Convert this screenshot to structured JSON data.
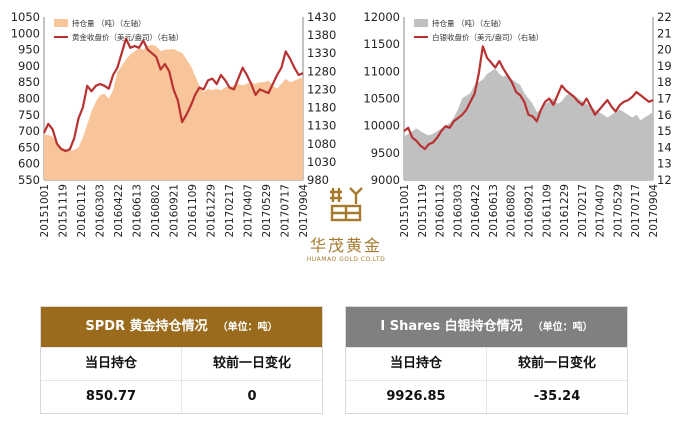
{
  "colors": {
    "gold_fill": "#f8c49a",
    "gold_line": "#b83232",
    "silver_fill": "#c0c0c0",
    "silver_line": "#b83232",
    "gold_header": "#9a6a1d",
    "silver_header": "#808080",
    "logo": "#a67a2e"
  },
  "chart_data": [
    {
      "type": "area",
      "legend": [
        {
          "label": "持仓量  （吨）（左轴）",
          "kind": "area",
          "color": "#f8c49a"
        },
        {
          "label": "黄金收盘价（美元/盎司）（右轴）",
          "kind": "line",
          "color": "#b83232"
        }
      ],
      "x_ticks": [
        "20151001",
        "20151119",
        "20160112",
        "20160303",
        "20160422",
        "20160613",
        "20160802",
        "20160921",
        "20161109",
        "20161229",
        "20170217",
        "20170407",
        "20170529",
        "20170717",
        "20170904"
      ],
      "y_left": {
        "min": 550,
        "max": 1050,
        "ticks": [
          550,
          600,
          650,
          700,
          750,
          800,
          850,
          900,
          950,
          1000,
          1050
        ]
      },
      "y_right": {
        "min": 980,
        "max": 1430,
        "ticks": [
          980,
          1030,
          1080,
          1130,
          1180,
          1230,
          1280,
          1330,
          1380,
          1430
        ]
      },
      "series": [
        {
          "name": "持仓量  （吨）（左轴）",
          "axis": "left",
          "values": [
            690,
            688,
            682,
            666,
            650,
            645,
            640,
            642,
            650,
            680,
            720,
            760,
            790,
            810,
            815,
            800,
            825,
            880,
            900,
            920,
            935,
            945,
            955,
            950,
            960,
            965,
            960,
            945,
            950,
            950,
            952,
            945,
            940,
            920,
            900,
            870,
            840,
            820,
            830,
            825,
            830,
            825,
            835,
            835,
            840,
            845,
            840,
            845,
            850,
            845,
            850,
            850,
            855,
            840,
            830,
            845,
            860,
            850,
            855,
            860,
            865
          ]
        },
        {
          "name": "黄金收盘价（美元/盎司）（右轴）",
          "axis": "right",
          "values": [
            1110,
            1135,
            1120,
            1080,
            1065,
            1060,
            1065,
            1095,
            1150,
            1180,
            1240,
            1225,
            1240,
            1245,
            1240,
            1232,
            1270,
            1290,
            1330,
            1370,
            1345,
            1350,
            1345,
            1365,
            1340,
            1330,
            1320,
            1285,
            1300,
            1280,
            1230,
            1200,
            1140,
            1160,
            1185,
            1215,
            1235,
            1230,
            1255,
            1260,
            1245,
            1270,
            1255,
            1235,
            1230,
            1260,
            1290,
            1270,
            1245,
            1215,
            1230,
            1225,
            1220,
            1245,
            1270,
            1290,
            1335,
            1315,
            1290,
            1270,
            1275
          ]
        }
      ]
    },
    {
      "type": "area",
      "legend": [
        {
          "label": "持仓量  （吨）（左轴）",
          "kind": "area",
          "color": "#c0c0c0"
        },
        {
          "label": "白银收盘价（美元/盎司）（右轴）",
          "kind": "line",
          "color": "#b83232"
        }
      ],
      "x_ticks": [
        "20151001",
        "20151119",
        "20160112",
        "20160303",
        "20160422",
        "20160613",
        "20160802",
        "20160921",
        "20161109",
        "20161229",
        "20170217",
        "20170407",
        "20170529",
        "20170717",
        "20170904"
      ],
      "y_left": {
        "min": 9000,
        "max": 12000,
        "ticks": [
          9000,
          9500,
          10000,
          10500,
          11000,
          11500,
          12000
        ]
      },
      "y_right": {
        "min": 12,
        "max": 22,
        "ticks": [
          12,
          13,
          14,
          15,
          16,
          17,
          18,
          19,
          20,
          21,
          22
        ]
      },
      "series": [
        {
          "name": "持仓量  （吨）（左轴）",
          "axis": "left",
          "values": [
            9800,
            9850,
            9900,
            9950,
            9900,
            9850,
            9820,
            9850,
            9900,
            9950,
            10000,
            10050,
            10150,
            10300,
            10500,
            10550,
            10600,
            10750,
            10800,
            10850,
            10950,
            11000,
            11050,
            10950,
            10900,
            10950,
            10850,
            10800,
            10750,
            10600,
            10500,
            10400,
            10250,
            10300,
            10400,
            10450,
            10500,
            10400,
            10450,
            10550,
            10600,
            10550,
            10500,
            10450,
            10400,
            10350,
            10300,
            10250,
            10200,
            10150,
            10200,
            10250,
            10300,
            10250,
            10200,
            10150,
            10200,
            10100,
            10150,
            10200,
            10250
          ]
        },
        {
          "name": "白银收盘价（美元/盎司）（右轴）",
          "axis": "right",
          "values": [
            15.0,
            15.2,
            14.6,
            14.4,
            14.1,
            13.9,
            14.2,
            14.3,
            14.6,
            15.0,
            15.3,
            15.2,
            15.6,
            15.8,
            16.0,
            16.3,
            16.8,
            17.3,
            18.5,
            20.2,
            19.5,
            19.2,
            18.9,
            19.3,
            18.8,
            18.4,
            18.0,
            17.4,
            17.2,
            16.8,
            16.0,
            15.9,
            15.6,
            16.3,
            16.8,
            17.0,
            16.6,
            17.2,
            17.8,
            17.5,
            17.3,
            17.1,
            16.8,
            16.6,
            17.0,
            16.5,
            16.0,
            16.3,
            16.6,
            16.9,
            16.5,
            16.2,
            16.6,
            16.8,
            16.9,
            17.1,
            17.4,
            17.2,
            17.0,
            16.8,
            16.9
          ]
        }
      ]
    }
  ],
  "logo": {
    "cn": "华茂黄金",
    "en": "HUAMAO GOLD CO.LTD"
  },
  "gold_panel": {
    "title": "SPDR 黄金持仓情况",
    "unit": "（单位：吨）",
    "col1": "当日持仓",
    "col2": "较前一日变化",
    "holding": "850.77",
    "change": "0"
  },
  "silver_panel": {
    "title": "I Shares 白银持仓情况",
    "unit": "（单位：吨）",
    "col1": "当日持仓",
    "col2": "较前一日变化",
    "holding": "9926.85",
    "change": "-35.24"
  }
}
